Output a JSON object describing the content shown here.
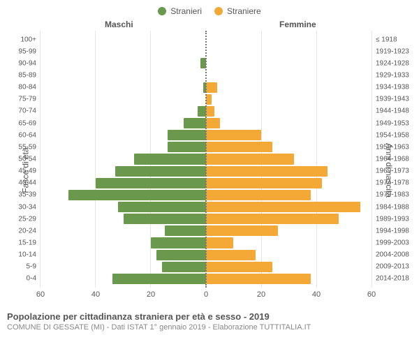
{
  "legend": {
    "male": {
      "label": "Stranieri",
      "color": "#6a994e"
    },
    "female": {
      "label": "Straniere",
      "color": "#f4a836"
    }
  },
  "headers": {
    "male": "Maschi",
    "female": "Femmine"
  },
  "axes": {
    "left_label": "Fasce di età",
    "right_label": "Anni di nascita",
    "x_max": 60,
    "x_ticks": [
      60,
      40,
      20,
      0,
      20,
      40,
      60
    ],
    "grid_color": "#e6e6e6",
    "center_line_color": "#777777"
  },
  "chart": {
    "type": "population-pyramid",
    "background_color": "#ffffff",
    "bar_color_male": "#6a994e",
    "bar_color_female": "#f4a836",
    "tick_fontsize": 10,
    "label_fontsize": 12,
    "rows": [
      {
        "age": "100+",
        "birth": "≤ 1918",
        "male": 0,
        "female": 0
      },
      {
        "age": "95-99",
        "birth": "1919-1923",
        "male": 0,
        "female": 0
      },
      {
        "age": "90-94",
        "birth": "1924-1928",
        "male": 2,
        "female": 0
      },
      {
        "age": "85-89",
        "birth": "1929-1933",
        "male": 0,
        "female": 0
      },
      {
        "age": "80-84",
        "birth": "1934-1938",
        "male": 1,
        "female": 4
      },
      {
        "age": "75-79",
        "birth": "1939-1943",
        "male": 0,
        "female": 2
      },
      {
        "age": "70-74",
        "birth": "1944-1948",
        "male": 3,
        "female": 3
      },
      {
        "age": "65-69",
        "birth": "1949-1953",
        "male": 8,
        "female": 5
      },
      {
        "age": "60-64",
        "birth": "1954-1958",
        "male": 14,
        "female": 20
      },
      {
        "age": "55-59",
        "birth": "1959-1963",
        "male": 14,
        "female": 24
      },
      {
        "age": "50-54",
        "birth": "1964-1968",
        "male": 26,
        "female": 32
      },
      {
        "age": "45-49",
        "birth": "1969-1973",
        "male": 33,
        "female": 44
      },
      {
        "age": "40-44",
        "birth": "1974-1978",
        "male": 40,
        "female": 42
      },
      {
        "age": "35-39",
        "birth": "1979-1983",
        "male": 50,
        "female": 38
      },
      {
        "age": "30-34",
        "birth": "1984-1988",
        "male": 32,
        "female": 56
      },
      {
        "age": "25-29",
        "birth": "1989-1993",
        "male": 30,
        "female": 48
      },
      {
        "age": "20-24",
        "birth": "1994-1998",
        "male": 15,
        "female": 26
      },
      {
        "age": "15-19",
        "birth": "1999-2003",
        "male": 20,
        "female": 10
      },
      {
        "age": "10-14",
        "birth": "2004-2008",
        "male": 18,
        "female": 18
      },
      {
        "age": "5-9",
        "birth": "2009-2013",
        "male": 16,
        "female": 24
      },
      {
        "age": "0-4",
        "birth": "2014-2018",
        "male": 34,
        "female": 38
      }
    ]
  },
  "footer": {
    "title": "Popolazione per cittadinanza straniera per età e sesso - 2019",
    "subtitle": "COMUNE DI GESSATE (MI) - Dati ISTAT 1° gennaio 2019 - Elaborazione TUTTITALIA.IT"
  }
}
